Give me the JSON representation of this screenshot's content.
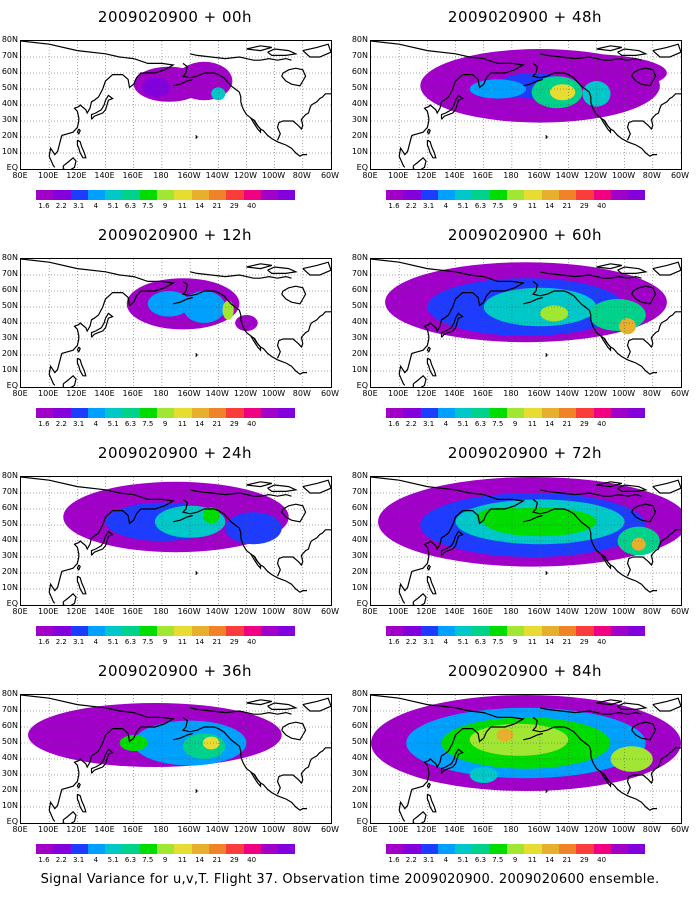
{
  "figure": {
    "footer": "Signal Variance for u,v,T. Flight 37. Observation time 2009020900. 2009020600 ensemble."
  },
  "panels": [
    {
      "title": "2009020900 + 00h"
    },
    {
      "title": "2009020900 + 48h"
    },
    {
      "title": "2009020900 + 12h"
    },
    {
      "title": "2009020900 + 60h"
    },
    {
      "title": "2009020900 + 24h"
    },
    {
      "title": "2009020900 + 72h"
    },
    {
      "title": "2009020900 + 36h"
    },
    {
      "title": "2009020900 + 84h"
    }
  ],
  "map": {
    "lat_labels": [
      "80N",
      "70N",
      "60N",
      "50N",
      "40N",
      "30N",
      "20N",
      "10N",
      "EQ"
    ],
    "lon_labels": [
      "80E",
      "100E",
      "120E",
      "140E",
      "160E",
      "180",
      "160W",
      "140W",
      "120W",
      "100W",
      "80W",
      "60W"
    ],
    "lon_range": [
      "80E",
      "60W"
    ],
    "lat_range": [
      "EQ",
      "80N"
    ],
    "grid": "dotted"
  },
  "colorbar": {
    "labels": [
      "1.6",
      "2.2",
      "3.1",
      "4",
      "5.1",
      "6.3",
      "7.5",
      "9",
      "11",
      "14",
      "21",
      "29",
      "40"
    ],
    "colors": [
      "#a000c8",
      "#8200dc",
      "#1e3cff",
      "#00a0ff",
      "#00c8c8",
      "#00d28c",
      "#00dc00",
      "#a0e632",
      "#e6dc32",
      "#e6af2d",
      "#f08228",
      "#fa3c3c",
      "#f00082"
    ]
  }
}
